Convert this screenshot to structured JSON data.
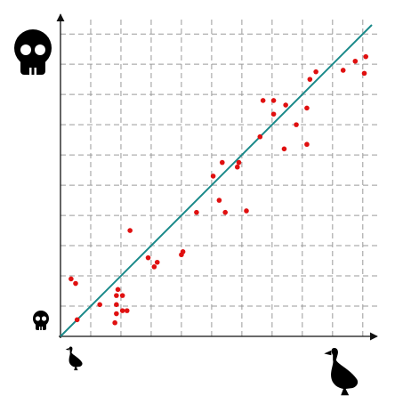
{
  "chart_data": {
    "type": "scatter",
    "title": "",
    "xlabel": "",
    "ylabel": "",
    "xlim": [
      0,
      10.3
    ],
    "ylim": [
      0,
      10.3
    ],
    "grid": true,
    "x_axis_icons": [
      "small-duck-icon",
      "large-duck-icon"
    ],
    "y_axis_icons": [
      "small-skull-icon",
      "large-skull-icon"
    ],
    "series": [
      {
        "type": "scatter",
        "color": "#e01010",
        "points": [
          [
            0.35,
            1.9
          ],
          [
            0.5,
            1.75
          ],
          [
            0.55,
            0.55
          ],
          [
            1.3,
            1.05
          ],
          [
            1.8,
            0.45
          ],
          [
            1.85,
            0.75
          ],
          [
            1.85,
            1.35
          ],
          [
            1.85,
            1.05
          ],
          [
            1.9,
            1.55
          ],
          [
            2.05,
            1.35
          ],
          [
            2.05,
            0.85
          ],
          [
            2.2,
            0.85
          ],
          [
            2.3,
            3.5
          ],
          [
            2.9,
            2.6
          ],
          [
            3.1,
            2.3
          ],
          [
            3.2,
            2.45
          ],
          [
            4.0,
            2.7
          ],
          [
            4.05,
            2.8
          ],
          [
            4.5,
            4.1
          ],
          [
            5.05,
            5.3
          ],
          [
            5.25,
            4.5
          ],
          [
            5.35,
            5.75
          ],
          [
            5.45,
            4.1
          ],
          [
            5.85,
            5.6
          ],
          [
            5.9,
            5.75
          ],
          [
            6.15,
            4.15
          ],
          [
            6.6,
            6.6
          ],
          [
            6.7,
            7.8
          ],
          [
            7.05,
            7.8
          ],
          [
            7.05,
            7.35
          ],
          [
            7.4,
            6.2
          ],
          [
            7.45,
            7.65
          ],
          [
            7.8,
            7.0
          ],
          [
            8.15,
            6.35
          ],
          [
            8.15,
            7.55
          ],
          [
            8.25,
            8.5
          ],
          [
            8.45,
            8.75
          ],
          [
            9.35,
            8.8
          ],
          [
            9.75,
            9.1
          ],
          [
            10.05,
            8.7
          ],
          [
            10.1,
            9.25
          ]
        ]
      },
      {
        "type": "line",
        "color": "#1a8a8a",
        "points": [
          [
            0,
            0
          ],
          [
            10.3,
            10.3
          ]
        ]
      }
    ]
  }
}
